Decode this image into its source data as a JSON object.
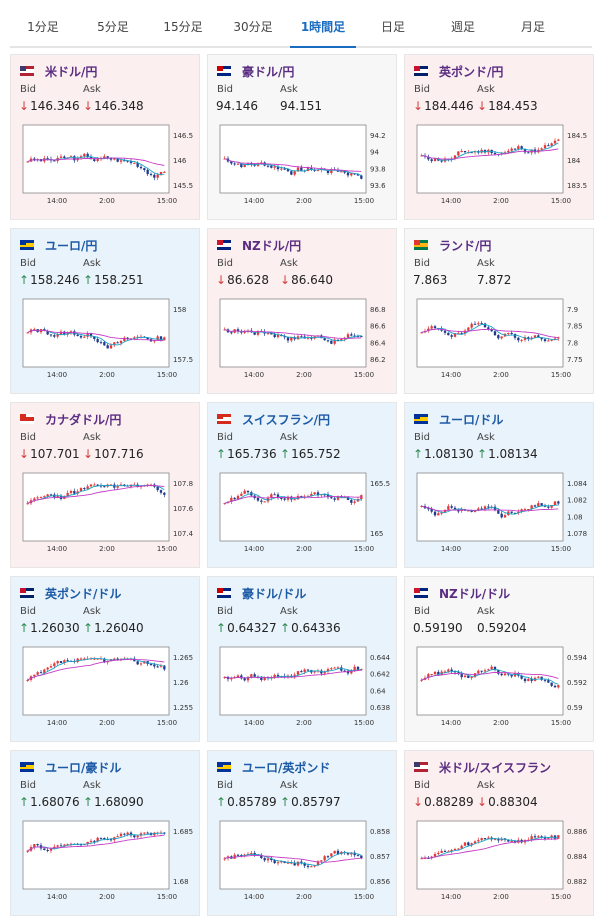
{
  "tabs": [
    "1分足",
    "5分足",
    "15分足",
    "30分足",
    "1時間足",
    "日足",
    "週足",
    "月足"
  ],
  "active_tab": 4,
  "labels": {
    "bid": "Bid",
    "ask": "Ask"
  },
  "cards": [
    {
      "name": "米ドル/円",
      "flag": "flag-us-jp",
      "trend": "down",
      "bid": "146.346",
      "ask": "146.348",
      "ticks": [
        "146.5",
        "146",
        "145.5"
      ],
      "times": [
        "14:00",
        "2:00",
        "15:00"
      ],
      "seed": 3
    },
    {
      "name": "豪ドル/円",
      "flag": "flag-au-jp",
      "trend": "flat",
      "bid": "94.146",
      "ask": "94.151",
      "ticks": [
        "94.2",
        "94",
        "93.8",
        "93.6"
      ],
      "times": [
        "14:00",
        "2:00",
        "15:00"
      ],
      "seed": 7
    },
    {
      "name": "英ポンド/円",
      "flag": "flag-gb-jp",
      "trend": "down",
      "bid": "184.446",
      "ask": "184.453",
      "ticks": [
        "184.5",
        "184",
        "183.5"
      ],
      "times": [
        "14:00",
        "2:00",
        "15:00"
      ],
      "seed": 11
    },
    {
      "name": "ユーロ/円",
      "flag": "flag-eu-jp",
      "trend": "up",
      "bid": "158.246",
      "ask": "158.251",
      "ticks": [
        "158",
        "157.5"
      ],
      "times": [
        "14:00",
        "2:00",
        "15:00"
      ],
      "seed": 13
    },
    {
      "name": "NZドル/円",
      "flag": "flag-nz-jp",
      "trend": "down",
      "bid": "86.628",
      "ask": "86.640",
      "ticks": [
        "86.8",
        "86.6",
        "86.4",
        "86.2"
      ],
      "times": [
        "14:00",
        "2:00",
        "15:00"
      ],
      "seed": 17
    },
    {
      "name": "ランド/円",
      "flag": "flag-za-jp",
      "trend": "flat",
      "bid": "7.863",
      "ask": "7.872",
      "ticks": [
        "7.9",
        "7.85",
        "7.8",
        "7.75"
      ],
      "times": [
        "14:00",
        "2:00",
        "15:00"
      ],
      "seed": 19
    },
    {
      "name": "カナダドル/円",
      "flag": "flag-ca-jp",
      "trend": "down",
      "bid": "107.701",
      "ask": "107.716",
      "ticks": [
        "107.8",
        "107.6",
        "107.4"
      ],
      "times": [
        "14:00",
        "2:00",
        "15:00"
      ],
      "seed": 23
    },
    {
      "name": "スイスフラン/円",
      "flag": "flag-ch-jp",
      "trend": "up",
      "bid": "165.736",
      "ask": "165.752",
      "ticks": [
        "165.5",
        "165"
      ],
      "times": [
        "14:00",
        "2:00",
        "15:00"
      ],
      "seed": 29
    },
    {
      "name": "ユーロ/ドル",
      "flag": "flag-eu-us",
      "trend": "up",
      "bid": "1.08130",
      "ask": "1.08134",
      "ticks": [
        "1.084",
        "1.082",
        "1.08",
        "1.078"
      ],
      "times": [
        "14:00",
        "2:00",
        "15:00"
      ],
      "seed": 31
    },
    {
      "name": "英ポンド/ドル",
      "flag": "flag-gb-us",
      "trend": "up",
      "bid": "1.26030",
      "ask": "1.26040",
      "ticks": [
        "1.265",
        "1.26",
        "1.255"
      ],
      "times": [
        "14:00",
        "2:00",
        "15:00"
      ],
      "seed": 37
    },
    {
      "name": "豪ドル/ドル",
      "flag": "flag-au-us",
      "trend": "up",
      "bid": "0.64327",
      "ask": "0.64336",
      "ticks": [
        "0.644",
        "0.642",
        "0.64",
        "0.638"
      ],
      "times": [
        "14:00",
        "2:00",
        "15:00"
      ],
      "seed": 41
    },
    {
      "name": "NZドル/ドル",
      "flag": "flag-nz-us",
      "trend": "flat",
      "bid": "0.59190",
      "ask": "0.59204",
      "ticks": [
        "0.594",
        "0.592",
        "0.59"
      ],
      "times": [
        "14:00",
        "2:00",
        "15:00"
      ],
      "seed": 43
    },
    {
      "name": "ユーロ/豪ドル",
      "flag": "flag-eu-au",
      "trend": "up",
      "bid": "1.68076",
      "ask": "1.68090",
      "ticks": [
        "1.685",
        "1.68"
      ],
      "times": [
        "14:00",
        "2:00",
        "15:00"
      ],
      "seed": 47
    },
    {
      "name": "ユーロ/英ポンド",
      "flag": "flag-eu-gb",
      "trend": "up",
      "bid": "0.85789",
      "ask": "0.85797",
      "ticks": [
        "0.858",
        "0.857",
        "0.856"
      ],
      "times": [
        "14:00",
        "2:00",
        "15:00"
      ],
      "seed": 53
    },
    {
      "name": "米ドル/スイスフラン",
      "flag": "flag-us-ch",
      "trend": "down",
      "bid": "0.88289",
      "ask": "0.88304",
      "ticks": [
        "0.886",
        "0.884",
        "0.882"
      ],
      "times": [
        "14:00",
        "2:00",
        "15:00"
      ],
      "seed": 59
    }
  ],
  "colors": {
    "accent": "#1a6cc0",
    "bull": "#e03a3a",
    "bear": "#1f3b8c",
    "ma_short": "#1ba3c6",
    "ma_long": "#c63bc6",
    "down_bg": "#fcefef",
    "up_bg": "#e9f3fb"
  }
}
